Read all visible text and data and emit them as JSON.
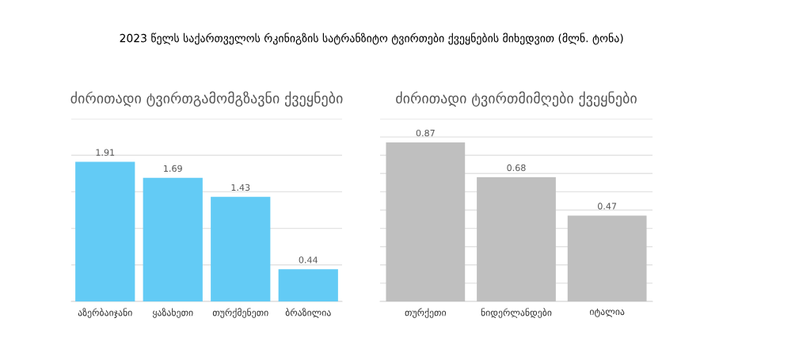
{
  "chart_data": [
    {
      "type": "bar",
      "title": "ძირითადი ტვირთგამომგზავნი ქვეყნები",
      "annotations": [
        "2023 წელს საქართველოს რკინიგზის სატრანზიტო ტვირთები ქვეყნების მიხედვით (მლნ. ტონა)"
      ],
      "categories": [
        "აზერბაიჯანი",
        "ყაზახეთი",
        "თურქმენეთი",
        "ბრაზილია"
      ],
      "values": [
        1.91,
        1.69,
        1.43,
        0.44
      ],
      "color": "#63cbf5",
      "ylim": [
        0,
        2.5
      ],
      "yticks": [
        {
          "value": 0,
          "label": null
        },
        {
          "value": 0.5,
          "label": null
        },
        {
          "value": 1,
          "label": null
        },
        {
          "value": 1.5,
          "label": null
        },
        {
          "value": 2,
          "label": null
        },
        {
          "value": 2.5,
          "label": null
        }
      ],
      "grid": "y",
      "tick_labels": "x",
      "data_labels": true
    },
    {
      "type": "bar",
      "title": "ძირითადი ტვირთმიმღები ქვეყნები",
      "categories": [
        "თურქეთი",
        "ნიდერლანდები",
        "იტალია"
      ],
      "values": [
        0.87,
        0.68,
        0.47
      ],
      "color": "#bfbfbf",
      "ylim": [
        0,
        1
      ],
      "yticks": [
        {
          "value": 0,
          "label": null
        },
        {
          "value": 0.1,
          "label": null
        },
        {
          "value": 0.2,
          "label": null
        },
        {
          "value": 0.3,
          "label": null
        },
        {
          "value": 0.4,
          "label": null
        },
        {
          "value": 0.5,
          "label": null
        },
        {
          "value": 0.6,
          "label": null
        },
        {
          "value": 0.7,
          "label": null
        },
        {
          "value": 0.8,
          "label": null
        },
        {
          "value": 0.9,
          "label": null
        },
        {
          "value": 1,
          "label": null
        }
      ],
      "grid": "y",
      "tick_labels": "x",
      "data_labels": true
    }
  ]
}
